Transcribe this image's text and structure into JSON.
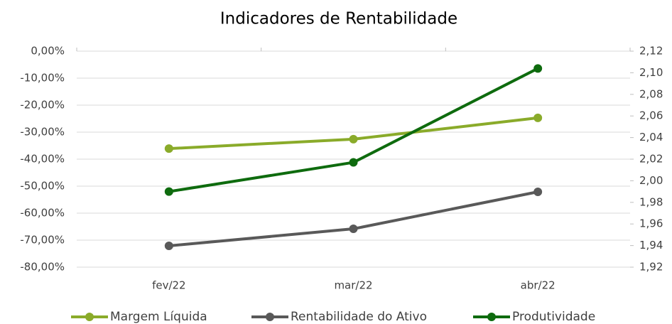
{
  "chart_data": {
    "type": "line",
    "title": "Indicadores de Rentabilidade",
    "categories": [
      "fev/22",
      "mar/22",
      "abr/22"
    ],
    "series": [
      {
        "name": "Margem Líquida",
        "color": "#8aab2a",
        "values": [
          -36.1,
          -32.6,
          -24.7
        ]
      },
      {
        "name": "Rentabilidade do Ativo",
        "color": "#595959",
        "values": [
          -72.1,
          -65.8,
          -52.1
        ]
      },
      {
        "name": "Produtividade",
        "color": "#0e6b0e",
        "values": [
          1.99,
          2.017,
          2.104
        ],
        "axis": "y2"
      }
    ],
    "ylim": [
      -80,
      0
    ],
    "yticks": [
      {
        "value": 0,
        "label": "0,00%"
      },
      {
        "value": -10,
        "label": "-10,00%"
      },
      {
        "value": -20,
        "label": "-20,00%"
      },
      {
        "value": -30,
        "label": "-30,00%"
      },
      {
        "value": -40,
        "label": "-40,00%"
      },
      {
        "value": -50,
        "label": "-50,00%"
      },
      {
        "value": -60,
        "label": "-60,00%"
      },
      {
        "value": -70,
        "label": "-70,00%"
      },
      {
        "value": -80,
        "label": "-80,00%"
      }
    ],
    "y2lim": [
      1.92,
      2.12
    ],
    "y2ticks": [
      {
        "value": 2.12,
        "label": "2,12"
      },
      {
        "value": 2.1,
        "label": "2,10"
      },
      {
        "value": 2.08,
        "label": "2,08"
      },
      {
        "value": 2.06,
        "label": "2,06"
      },
      {
        "value": 2.04,
        "label": "2,04"
      },
      {
        "value": 2.02,
        "label": "2,02"
      },
      {
        "value": 2.0,
        "label": "2,00"
      },
      {
        "value": 1.98,
        "label": "1,98"
      },
      {
        "value": 1.96,
        "label": "1,96"
      },
      {
        "value": 1.94,
        "label": "1,94"
      },
      {
        "value": 1.92,
        "label": "1,92"
      }
    ],
    "grid": true,
    "legend": "bottom"
  }
}
